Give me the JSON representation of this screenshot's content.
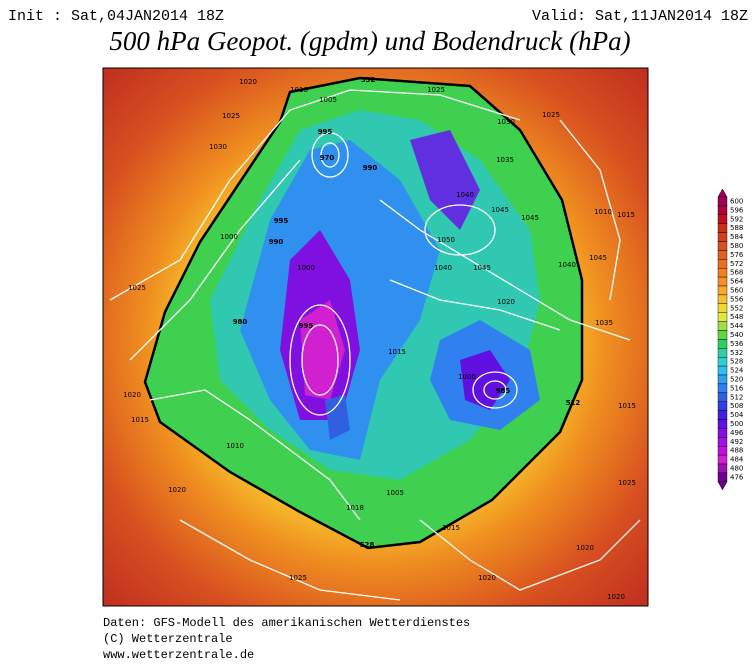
{
  "header": {
    "init": "Init : Sat,04JAN2014 18Z",
    "valid": "Valid: Sat,11JAN2014 18Z",
    "title": "500 hPa Geopot. (gpdm) und Bodendruck (hPa)"
  },
  "map": {
    "isobar_labels": [
      "1020",
      "1010",
      "1005",
      "552",
      "1025",
      "1025",
      "1030",
      "1030",
      "1025",
      "995",
      "970",
      "990",
      "1035",
      "1040",
      "1045",
      "1045",
      "1010",
      "1015",
      "995",
      "1000",
      "990",
      "1050",
      "1040",
      "1045",
      "1040",
      "1045",
      "1025",
      "1000",
      "1020",
      "1035",
      "980",
      "995",
      "1015",
      "1000",
      "985",
      "512",
      "1015",
      "1020",
      "1015",
      "1010",
      "1005",
      "1018",
      "528",
      "1015",
      "1020",
      "1025",
      "1020",
      "1020",
      "1020",
      "1025"
    ]
  },
  "legend": {
    "levels": [
      600,
      596,
      592,
      588,
      584,
      580,
      576,
      572,
      568,
      564,
      560,
      556,
      552,
      548,
      544,
      540,
      536,
      532,
      528,
      524,
      520,
      516,
      512,
      508,
      504,
      500,
      496,
      492,
      488,
      484,
      480,
      476
    ],
    "colors": [
      "#a0005a",
      "#b0003a",
      "#c01020",
      "#c83018",
      "#d04020",
      "#d85020",
      "#e06020",
      "#e87020",
      "#f08020",
      "#f89020",
      "#f8a830",
      "#f8c030",
      "#f0d830",
      "#e0e840",
      "#a0e040",
      "#60d840",
      "#30d060",
      "#30d0a0",
      "#30d0d0",
      "#30c0f0",
      "#30a0f0",
      "#3080f0",
      "#3060e0",
      "#3040e0",
      "#4020e0",
      "#6010e0",
      "#8010e0",
      "#a010e0",
      "#c010e0",
      "#d020d0",
      "#a010b0",
      "#700090"
    ]
  },
  "footer": {
    "source": "Daten: GFS-Modell des amerikanischen Wetterdienstes",
    "copyright": "(C) Wetterzentrale",
    "url": "www.wetterzentrale.de"
  }
}
